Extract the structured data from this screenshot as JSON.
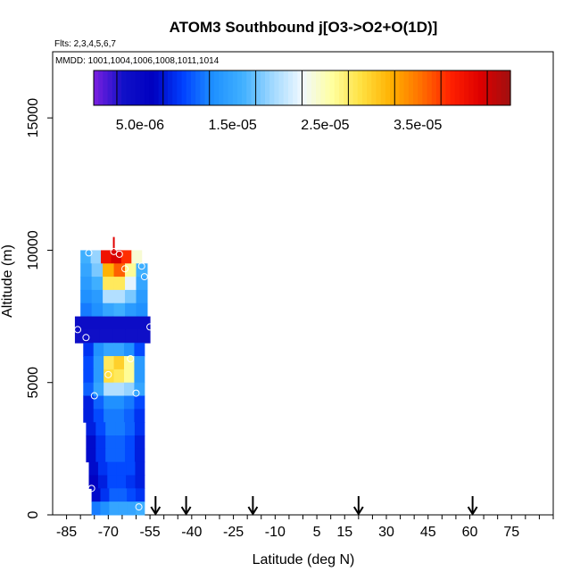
{
  "chart_data": {
    "type": "heatmap",
    "title": "ATOM3 Southbound j[O3->O2+O(1D)]",
    "flights_label": "Flts: 2,3,4,5,6,7",
    "mmdd_label": "MMDD: 1001,1004,1006,1008,1011,1014",
    "xlabel": "Latitude (deg N)",
    "ylabel": "Altitude (m)",
    "xlim": [
      -90,
      90
    ],
    "ylim": [
      0,
      17500
    ],
    "x_ticks": [
      -85,
      -70,
      -55,
      -40,
      -25,
      -10,
      5,
      15,
      30,
      45,
      60,
      75
    ],
    "y_ticks": [
      0,
      5000,
      10000,
      15000
    ],
    "colorbar": {
      "ticks": [
        "5.0e-06",
        "1.5e-05",
        "2.5e-05",
        "3.5e-05"
      ],
      "tick_values": [
        5e-06,
        1.5e-05,
        2.5e-05,
        3.5e-05
      ],
      "range": [
        0,
        4.5e-05
      ],
      "colors": [
        "#7b1fe0",
        "#1010c8",
        "#0000c0",
        "#0040ff",
        "#1e90ff",
        "#40b0ff",
        "#a0d8ff",
        "#f0f8ff",
        "#ffffa0",
        "#ffe040",
        "#ffb000",
        "#ff7000",
        "#ff2000",
        "#dd0000",
        "#a01010"
      ]
    },
    "arrows_latitude": [
      -53,
      -42,
      -18,
      20,
      61
    ],
    "vertical_levels": [
      {
        "alt_bottom": 9500,
        "alt_top": 10000,
        "lon_min": -80,
        "lon_max": -58,
        "value_profile": [
          1.6e-05,
          1.9e-05,
          4e-05,
          4.2e-05,
          3.8e-05,
          2.4e-05
        ]
      },
      {
        "alt_bottom": 9000,
        "alt_top": 9500,
        "lon_min": -80,
        "lon_max": -56,
        "value_profile": [
          1.5e-05,
          1.8e-05,
          3.2e-05,
          3.6e-05,
          2.6e-05,
          1.6e-05
        ]
      },
      {
        "alt_bottom": 8500,
        "alt_top": 9000,
        "lon_min": -80,
        "lon_max": -56,
        "value_profile": [
          1.4e-05,
          1.6e-05,
          2.8e-05,
          2.8e-05,
          2.2e-05,
          1.5e-05
        ]
      },
      {
        "alt_bottom": 8000,
        "alt_top": 8500,
        "lon_min": -80,
        "lon_max": -56,
        "value_profile": [
          1.3e-05,
          1.4e-05,
          2e-05,
          2e-05,
          1.8e-05,
          1.4e-05
        ]
      },
      {
        "alt_bottom": 7500,
        "alt_top": 8000,
        "lon_min": -80,
        "lon_max": -56,
        "value_profile": [
          1.2e-05,
          1.3e-05,
          1.5e-05,
          1.6e-05,
          1.4e-05,
          1.3e-05
        ]
      },
      {
        "alt_bottom": 7000,
        "alt_top": 7500,
        "lon_min": -82,
        "lon_max": -55,
        "value_profile": [
          4e-06,
          4e-06,
          4e-06,
          4e-06,
          4e-06,
          4e-06
        ]
      },
      {
        "alt_bottom": 6500,
        "alt_top": 7000,
        "lon_min": -82,
        "lon_max": -55,
        "value_profile": [
          3.5e-06,
          3.5e-06,
          3.5e-06,
          3.5e-06,
          3.5e-06,
          3.5e-06
        ]
      },
      {
        "alt_bottom": 6000,
        "alt_top": 6500,
        "lon_min": -79,
        "lon_max": -57,
        "value_profile": [
          9e-06,
          1.3e-05,
          1.5e-05,
          1.5e-05,
          1.3e-05,
          1e-05
        ]
      },
      {
        "alt_bottom": 5500,
        "alt_top": 6000,
        "lon_min": -79,
        "lon_max": -57,
        "value_profile": [
          1e-05,
          1.4e-05,
          2.8e-05,
          3e-05,
          2.6e-05,
          1.4e-05
        ]
      },
      {
        "alt_bottom": 5000,
        "alt_top": 5500,
        "lon_min": -79,
        "lon_max": -57,
        "value_profile": [
          1e-05,
          1.4e-05,
          2.9e-05,
          2.8e-05,
          2.6e-05,
          1.4e-05
        ]
      },
      {
        "alt_bottom": 4500,
        "alt_top": 5000,
        "lon_min": -79,
        "lon_max": -57,
        "value_profile": [
          1.1e-05,
          1.5e-05,
          2e-05,
          2e-05,
          1.9e-05,
          1.5e-05
        ]
      },
      {
        "alt_bottom": 4000,
        "alt_top": 4500,
        "lon_min": -79,
        "lon_max": -57,
        "value_profile": [
          8e-06,
          1.1e-05,
          1.3e-05,
          1.3e-05,
          1.2e-05,
          1e-05
        ]
      },
      {
        "alt_bottom": 3500,
        "alt_top": 4000,
        "lon_min": -79,
        "lon_max": -57,
        "value_profile": [
          8e-06,
          1e-05,
          1.2e-05,
          1.2e-05,
          1.1e-05,
          9e-06
        ]
      },
      {
        "alt_bottom": 3000,
        "alt_top": 3500,
        "lon_min": -78,
        "lon_max": -57,
        "value_profile": [
          8e-06,
          1e-05,
          1.2e-05,
          1.2e-05,
          1.1e-05,
          9e-06
        ]
      },
      {
        "alt_bottom": 2500,
        "alt_top": 3000,
        "lon_min": -78,
        "lon_max": -57,
        "value_profile": [
          7e-06,
          9e-06,
          1.1e-05,
          1.1e-05,
          1e-05,
          8e-06
        ]
      },
      {
        "alt_bottom": 2000,
        "alt_top": 2500,
        "lon_min": -78,
        "lon_max": -57,
        "value_profile": [
          7e-06,
          9e-06,
          1.1e-05,
          1.1e-05,
          1e-05,
          8e-06
        ]
      },
      {
        "alt_bottom": 1500,
        "alt_top": 2000,
        "lon_min": -77,
        "lon_max": -57,
        "value_profile": [
          7e-06,
          9e-06,
          1e-05,
          1e-05,
          1e-05,
          8e-06
        ]
      },
      {
        "alt_bottom": 1000,
        "alt_top": 1500,
        "lon_min": -77,
        "lon_max": -57,
        "value_profile": [
          6e-06,
          8e-06,
          1e-05,
          1e-05,
          9e-06,
          8e-06
        ]
      },
      {
        "alt_bottom": 500,
        "alt_top": 1000,
        "lon_min": -76,
        "lon_max": -57,
        "value_profile": [
          7e-06,
          9e-06,
          1.1e-05,
          1.1e-05,
          1e-05,
          9e-06
        ]
      },
      {
        "alt_bottom": 0,
        "alt_top": 500,
        "lon_min": -76,
        "lon_max": -57,
        "value_profile": [
          1.2e-05,
          1.3e-05,
          1.5e-05,
          1.5e-05,
          1.5e-05,
          1.6e-05
        ]
      }
    ],
    "observations": [
      {
        "lat": -77,
        "alt": 9900
      },
      {
        "lat": -68,
        "alt": 9950
      },
      {
        "lat": -66,
        "alt": 9850
      },
      {
        "lat": -64,
        "alt": 9300
      },
      {
        "lat": -58,
        "alt": 9400
      },
      {
        "lat": -57,
        "alt": 9000
      },
      {
        "lat": -81,
        "alt": 7000
      },
      {
        "lat": -78,
        "alt": 6700
      },
      {
        "lat": -55,
        "alt": 7100
      },
      {
        "lat": -62,
        "alt": 5900
      },
      {
        "lat": -70,
        "alt": 5300
      },
      {
        "lat": -60,
        "alt": 4600
      },
      {
        "lat": -75,
        "alt": 4500
      },
      {
        "lat": -76,
        "alt": 1000
      },
      {
        "lat": -59,
        "alt": 300
      }
    ],
    "red_tick": {
      "lat": -68,
      "alt_bottom": 10000,
      "alt_top": 10500
    }
  }
}
